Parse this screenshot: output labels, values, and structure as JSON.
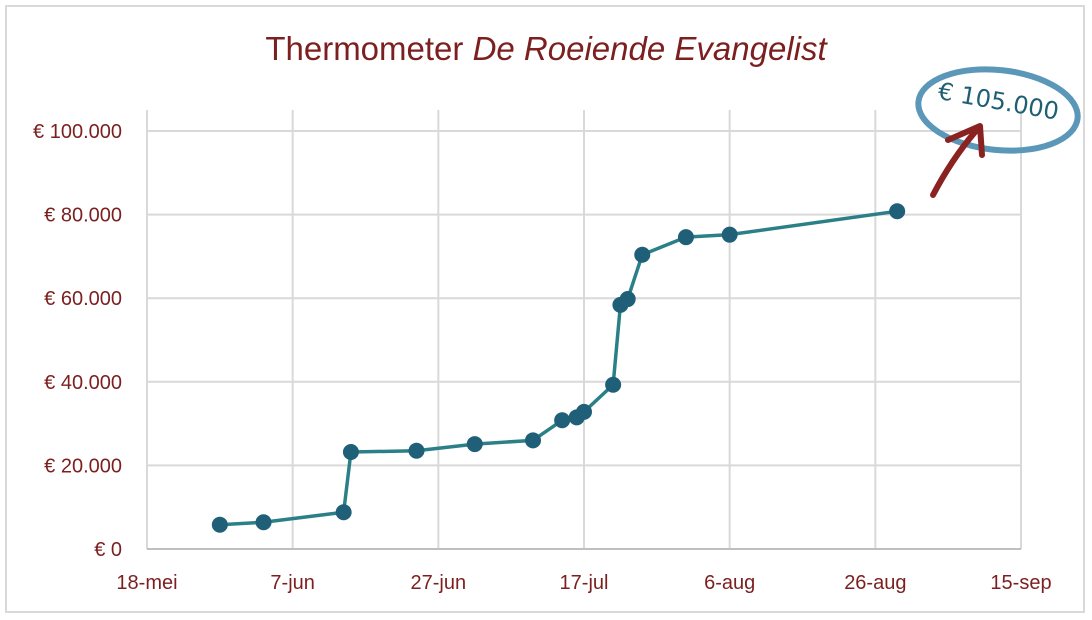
{
  "chart_data": {
    "type": "line",
    "title_plain": "Thermometer",
    "title_italic": "De Roeiende Evangelist",
    "xlabel": "",
    "ylabel": "",
    "x_tick_labels": [
      "18-mei",
      "7-jun",
      "27-jun",
      "17-jul",
      "6-aug",
      "26-aug",
      "15-sep"
    ],
    "x_ticks_days": [
      0,
      20,
      40,
      60,
      80,
      100,
      120
    ],
    "y_tick_labels": [
      "€ 0",
      "€ 20.000",
      "€ 40.000",
      "€ 60.000",
      "€ 80.000",
      "€ 100.000"
    ],
    "y_ticks": [
      0,
      20000,
      40000,
      60000,
      80000,
      100000
    ],
    "xlim_days": [
      0,
      120
    ],
    "ylim": [
      0,
      100000
    ],
    "grid": true,
    "legend": "none",
    "line_color": "#2b8088",
    "marker_color": "#1f5f78",
    "label_color": "#7b1f1f",
    "series": [
      {
        "points": [
          {
            "x": "28-mei",
            "y": 5800
          },
          {
            "x": "3-jun",
            "y": 6400
          },
          {
            "x": "14-jun",
            "y": 8800
          },
          {
            "x": "15-jun",
            "y": 23200
          },
          {
            "x": "24-jun",
            "y": 23500
          },
          {
            "x": "2-jul",
            "y": 25100
          },
          {
            "x": "10-jul",
            "y": 26000
          },
          {
            "x": "14-jul",
            "y": 30800
          },
          {
            "x": "16-jul",
            "y": 31500
          },
          {
            "x": "17-jul",
            "y": 32800
          },
          {
            "x": "21-jul",
            "y": 39300
          },
          {
            "x": "22-jul",
            "y": 58400
          },
          {
            "x": "23-jul",
            "y": 59800
          },
          {
            "x": "25-jul",
            "y": 70400
          },
          {
            "x": "31-jul",
            "y": 74600
          },
          {
            "x": "6-aug",
            "y": 75200
          },
          {
            "x": "29-aug",
            "y": 80800
          }
        ]
      }
    ],
    "annotation": {
      "text": "€ 105.000",
      "circle_color": "#5b97b8",
      "arrow_color": "#8b2222"
    }
  }
}
